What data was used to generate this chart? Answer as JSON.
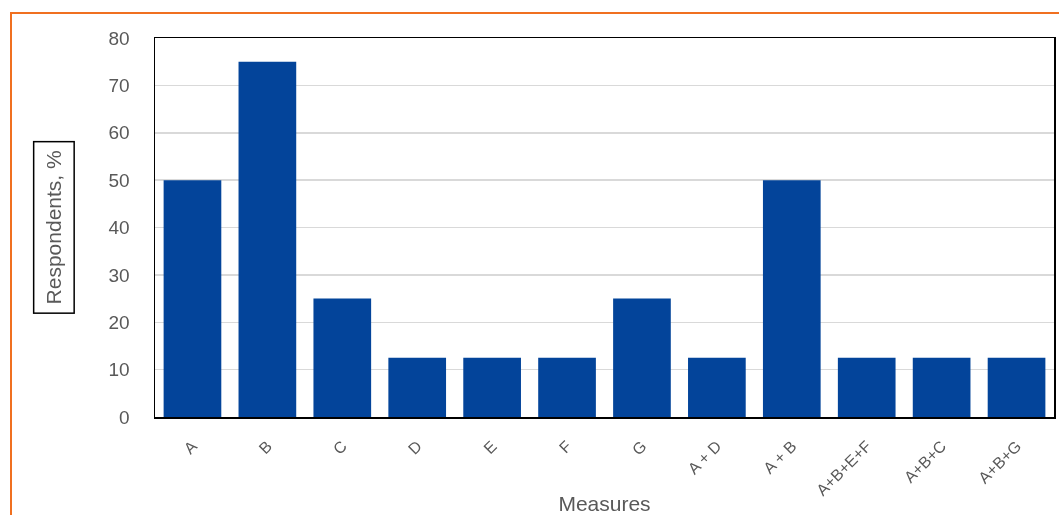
{
  "chart_data": {
    "type": "bar",
    "xlabel": "Measures",
    "ylabel": "Respondents, %",
    "categories": [
      "A",
      "B",
      "C",
      "D",
      "E",
      "F",
      "G",
      "A + D",
      "A + B",
      "A+B+E+F",
      "A+B+C",
      "A+B+G"
    ],
    "values": [
      50,
      75,
      25,
      12.5,
      12.5,
      12.5,
      25,
      12.5,
      50,
      12.5,
      12.5,
      12.5
    ],
    "color": "#03449a",
    "ylim": [
      0,
      80
    ],
    "yticks": [
      0,
      10,
      20,
      30,
      40,
      50,
      60,
      70,
      80
    ],
    "grid": "y"
  }
}
